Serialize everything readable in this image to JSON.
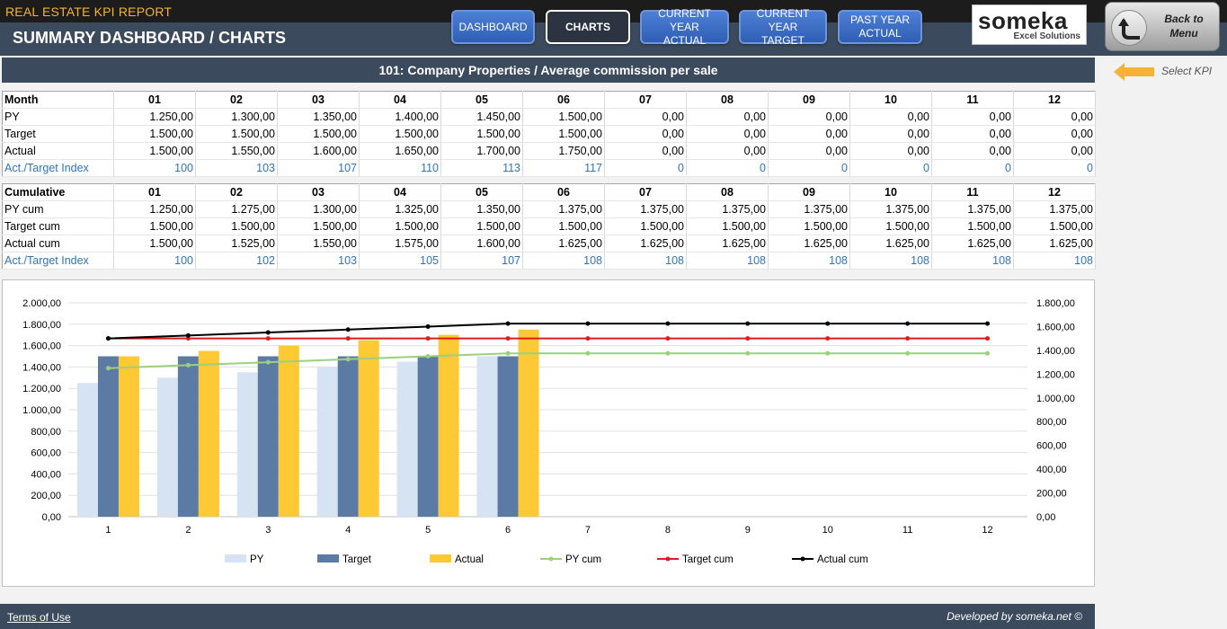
{
  "header": {
    "report_title": "REAL ESTATE KPI REPORT",
    "page_title": "SUMMARY DASHBOARD / CHARTS",
    "nav": [
      {
        "label": "DASHBOARD"
      },
      {
        "label": "CHARTS"
      },
      {
        "label": "CURRENT YEAR ACTUAL"
      },
      {
        "label": "CURRENT YEAR TARGET"
      },
      {
        "label": "PAST YEAR ACTUAL"
      }
    ],
    "logo": {
      "name": "someka",
      "tagline": "Excel Solutions"
    },
    "back_button": "Back to Menu"
  },
  "kpi": {
    "title": "101: Company Properties / Average commission per sale",
    "select_label": "Select KPI"
  },
  "monthly_table": {
    "columns": [
      "Month",
      "01",
      "02",
      "03",
      "04",
      "05",
      "06",
      "07",
      "08",
      "09",
      "10",
      "11",
      "12"
    ],
    "rows": [
      {
        "label": "PY",
        "values": [
          "1.250,00",
          "1.300,00",
          "1.350,00",
          "1.400,00",
          "1.450,00",
          "1.500,00",
          "0,00",
          "0,00",
          "0,00",
          "0,00",
          "0,00",
          "0,00"
        ]
      },
      {
        "label": "Target",
        "values": [
          "1.500,00",
          "1.500,00",
          "1.500,00",
          "1.500,00",
          "1.500,00",
          "1.500,00",
          "0,00",
          "0,00",
          "0,00",
          "0,00",
          "0,00",
          "0,00"
        ]
      },
      {
        "label": "Actual",
        "values": [
          "1.500,00",
          "1.550,00",
          "1.600,00",
          "1.650,00",
          "1.700,00",
          "1.750,00",
          "0,00",
          "0,00",
          "0,00",
          "0,00",
          "0,00",
          "0,00"
        ]
      },
      {
        "label": "Act./Target Index",
        "values": [
          "100",
          "103",
          "107",
          "110",
          "113",
          "117",
          "0",
          "0",
          "0",
          "0",
          "0",
          "0"
        ]
      }
    ]
  },
  "cumulative_table": {
    "columns": [
      "Cumulative",
      "01",
      "02",
      "03",
      "04",
      "05",
      "06",
      "07",
      "08",
      "09",
      "10",
      "11",
      "12"
    ],
    "rows": [
      {
        "label": "PY cum",
        "values": [
          "1.250,00",
          "1.275,00",
          "1.300,00",
          "1.325,00",
          "1.350,00",
          "1.375,00",
          "1.375,00",
          "1.375,00",
          "1.375,00",
          "1.375,00",
          "1.375,00",
          "1.375,00"
        ]
      },
      {
        "label": "Target cum",
        "values": [
          "1.500,00",
          "1.500,00",
          "1.500,00",
          "1.500,00",
          "1.500,00",
          "1.500,00",
          "1.500,00",
          "1.500,00",
          "1.500,00",
          "1.500,00",
          "1.500,00",
          "1.500,00"
        ]
      },
      {
        "label": "Actual cum",
        "values": [
          "1.500,00",
          "1.525,00",
          "1.550,00",
          "1.575,00",
          "1.600,00",
          "1.625,00",
          "1.625,00",
          "1.625,00",
          "1.625,00",
          "1.625,00",
          "1.625,00",
          "1.625,00"
        ]
      },
      {
        "label": "Act./Target Index",
        "values": [
          "100",
          "102",
          "103",
          "105",
          "107",
          "108",
          "108",
          "108",
          "108",
          "108",
          "108",
          "108"
        ]
      }
    ]
  },
  "chart_data": {
    "type": "bar",
    "categories": [
      "1",
      "2",
      "3",
      "4",
      "5",
      "6",
      "7",
      "8",
      "9",
      "10",
      "11",
      "12"
    ],
    "y_left": {
      "ylim": [
        0,
        2000
      ],
      "ticks": [
        "0,00",
        "200,00",
        "400,00",
        "600,00",
        "800,00",
        "1.000,00",
        "1.200,00",
        "1.400,00",
        "1.600,00",
        "1.800,00",
        "2.000,00"
      ]
    },
    "y_right": {
      "ylim": [
        0,
        1800
      ],
      "ticks": [
        "0,00",
        "200,00",
        "400,00",
        "600,00",
        "800,00",
        "1.000,00",
        "1.200,00",
        "1.400,00",
        "1.600,00",
        "1.800,00"
      ]
    },
    "bar_series": [
      {
        "name": "PY",
        "color": "#d6e3f3",
        "values": [
          1250,
          1300,
          1350,
          1400,
          1450,
          1500,
          0,
          0,
          0,
          0,
          0,
          0
        ]
      },
      {
        "name": "Target",
        "color": "#5b7ba5",
        "values": [
          1500,
          1500,
          1500,
          1500,
          1500,
          1500,
          0,
          0,
          0,
          0,
          0,
          0
        ]
      },
      {
        "name": "Actual",
        "color": "#fdc934",
        "values": [
          1500,
          1550,
          1600,
          1650,
          1700,
          1750,
          0,
          0,
          0,
          0,
          0,
          0
        ]
      }
    ],
    "line_series": [
      {
        "name": "PY cum",
        "color": "#9cd07e",
        "axis": "right",
        "values": [
          1250,
          1275,
          1300,
          1325,
          1350,
          1375,
          1375,
          1375,
          1375,
          1375,
          1375,
          1375
        ]
      },
      {
        "name": "Target cum",
        "color": "#e31a1c",
        "axis": "right",
        "values": [
          1500,
          1500,
          1500,
          1500,
          1500,
          1500,
          1500,
          1500,
          1500,
          1500,
          1500,
          1500
        ]
      },
      {
        "name": "Actual cum",
        "color": "#000000",
        "axis": "right",
        "values": [
          1500,
          1525,
          1550,
          1575,
          1600,
          1625,
          1625,
          1625,
          1625,
          1625,
          1625,
          1625
        ]
      }
    ],
    "grid": true,
    "legend": "bottom"
  },
  "footer": {
    "terms": "Terms of Use",
    "developer": "Developed by someka.net ©"
  }
}
